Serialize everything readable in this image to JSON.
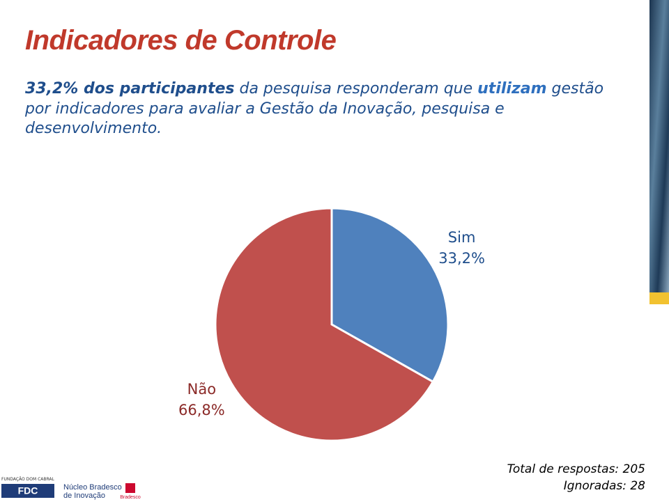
{
  "title": "Indicadores de Controle",
  "body": [
    "33,2% dos participantes",
    " da pesquisa responderam que ",
    "utilizam",
    "  gestão por indicadores para avaliar a Gestão da Inovação, pesquisa e desenvolvimento."
  ],
  "chart_data": {
    "type": "pie",
    "categories": [
      "Sim",
      "Não"
    ],
    "values": [
      33.2,
      66.8
    ],
    "value_labels": [
      "33,2%",
      "66,8%"
    ],
    "colors": [
      "#4f81bd",
      "#c0504d"
    ]
  },
  "footer": {
    "total": "Total de respostas: 205",
    "ignored": "Ignoradas: 28"
  },
  "logos": {
    "fdc_top": "FUNDAÇÃO DOM CABRAL",
    "fdc": "FDC",
    "nucleo1": "Núcleo Bradesco",
    "nucleo2": "de Inovação",
    "bradesco": "Bradesco"
  }
}
